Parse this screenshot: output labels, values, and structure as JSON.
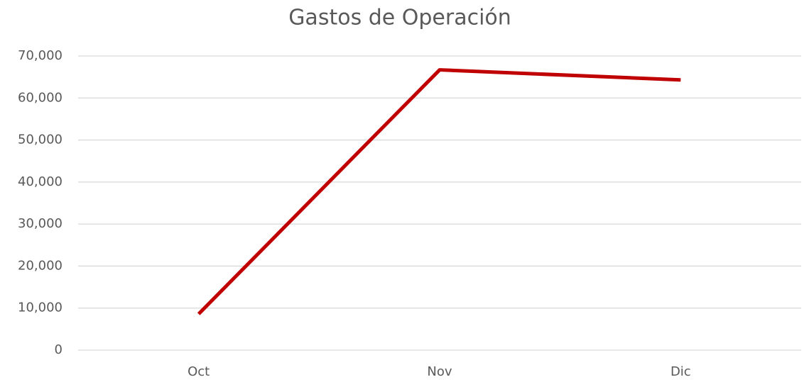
{
  "chart_data": {
    "type": "line",
    "title": "Gastos de Operación",
    "categories": [
      "Oct",
      "Nov",
      "Dic"
    ],
    "series": [
      {
        "name": "Gastos de Operación",
        "color": "#c00000",
        "values": [
          8600,
          66700,
          64300
        ]
      }
    ],
    "ylim": [
      0,
      70000
    ],
    "yticks": [
      0,
      {
        "value": 10000,
        "label": "10,000"
      },
      {
        "value": 20000,
        "label": "20,000"
      },
      {
        "value": 30000,
        "label": "30,000"
      },
      {
        "value": 40000,
        "label": "40,000"
      },
      {
        "value": 50000,
        "label": "50,000"
      },
      {
        "value": 60000,
        "label": "60,000"
      },
      {
        "value": 70000,
        "label": "70,000"
      }
    ],
    "grid": true,
    "legend": false
  }
}
